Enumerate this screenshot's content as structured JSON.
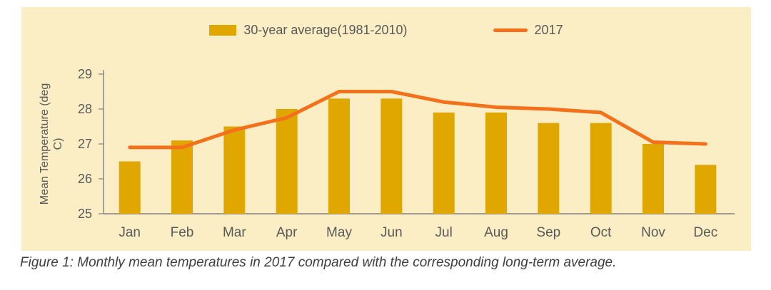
{
  "caption": "Figure 1: Monthly mean temperatures in 2017 compared with the corresponding long-term average.",
  "chart_data": {
    "type": "bar+line",
    "title": "",
    "xlabel": "",
    "ylabel": "Mean Temperature (deg C)",
    "ylim": [
      25,
      29
    ],
    "yticks": [
      25,
      26,
      27,
      28,
      29
    ],
    "grid": false,
    "legend_position": "top",
    "categories": [
      "Jan",
      "Feb",
      "Mar",
      "Apr",
      "May",
      "Jun",
      "Jul",
      "Aug",
      "Sep",
      "Oct",
      "Nov",
      "Dec"
    ],
    "series": [
      {
        "name": "30-year average(1981-2010)",
        "type": "bar",
        "color": "#E0A700",
        "values": [
          26.5,
          27.1,
          27.5,
          28.0,
          28.3,
          28.3,
          27.9,
          27.9,
          27.6,
          27.6,
          27.0,
          26.4
        ]
      },
      {
        "name": "2017",
        "type": "line",
        "color": "#F4711C",
        "values": [
          26.9,
          26.9,
          27.4,
          27.75,
          28.5,
          28.5,
          28.2,
          28.05,
          28.0,
          27.9,
          27.05,
          27.0
        ]
      }
    ],
    "colors": {
      "panel_background": "#FBEEC5",
      "text": "#595959",
      "axis": "#808080"
    }
  }
}
